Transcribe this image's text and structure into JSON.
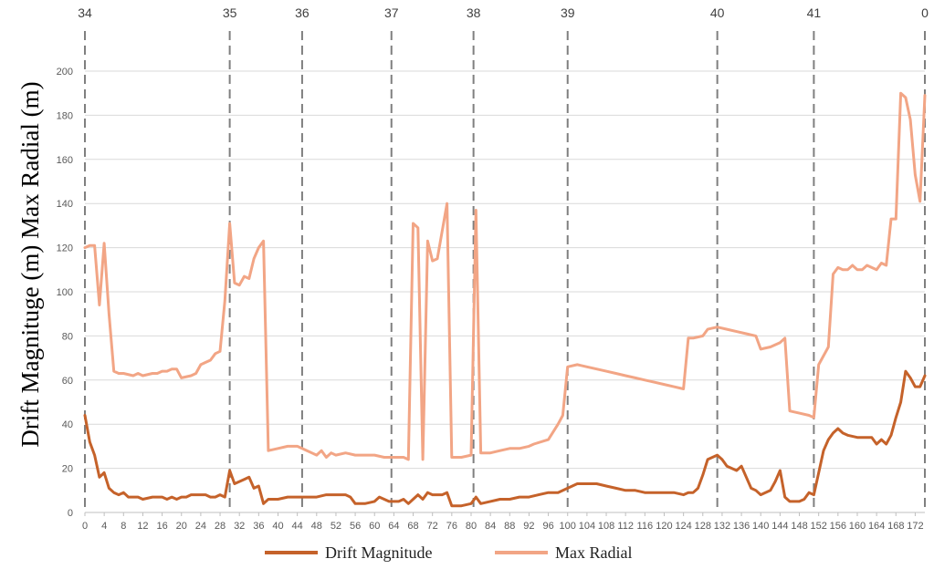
{
  "chart_data": {
    "type": "line",
    "ylabel": "Drift Magnituge (m) Max Radial (m)",
    "xlabel": "",
    "xlim": [
      0,
      174
    ],
    "ylim": [
      0,
      200
    ],
    "y_ticks": [
      0,
      20,
      40,
      60,
      80,
      100,
      120,
      140,
      160,
      180,
      200
    ],
    "x_ticks": [
      0,
      4,
      8,
      12,
      16,
      20,
      24,
      28,
      32,
      36,
      40,
      44,
      48,
      52,
      56,
      60,
      64,
      68,
      72,
      76,
      80,
      84,
      88,
      92,
      96,
      100,
      104,
      108,
      112,
      116,
      120,
      124,
      128,
      132,
      136,
      140,
      144,
      148,
      152,
      156,
      160,
      164,
      168,
      172
    ],
    "grid": "horizontal",
    "legend": "bottom",
    "vertical_markers": [
      {
        "x": 0,
        "label": "34"
      },
      {
        "x": 30,
        "label": "35"
      },
      {
        "x": 45,
        "label": "36"
      },
      {
        "x": 63.5,
        "label": "37"
      },
      {
        "x": 80.5,
        "label": "38"
      },
      {
        "x": 100,
        "label": "39"
      },
      {
        "x": 131,
        "label": "40"
      },
      {
        "x": 151,
        "label": "41"
      },
      {
        "x": 174,
        "label": "0"
      }
    ],
    "series": [
      {
        "name": "Drift Magnitude",
        "color": "#C5622A",
        "points": [
          [
            0,
            44
          ],
          [
            1,
            32
          ],
          [
            2,
            26
          ],
          [
            3,
            16
          ],
          [
            4,
            18
          ],
          [
            5,
            11
          ],
          [
            6,
            9
          ],
          [
            7,
            8
          ],
          [
            8,
            9
          ],
          [
            9,
            7
          ],
          [
            10,
            7
          ],
          [
            11,
            7
          ],
          [
            12,
            6
          ],
          [
            14,
            7
          ],
          [
            15,
            7
          ],
          [
            16,
            7
          ],
          [
            17,
            6
          ],
          [
            18,
            7
          ],
          [
            19,
            6
          ],
          [
            20,
            7
          ],
          [
            21,
            7
          ],
          [
            22,
            8
          ],
          [
            24,
            8
          ],
          [
            25,
            8
          ],
          [
            26,
            7
          ],
          [
            27,
            7
          ],
          [
            28,
            8
          ],
          [
            29,
            7
          ],
          [
            30,
            19
          ],
          [
            31,
            13
          ],
          [
            32,
            14
          ],
          [
            33,
            15
          ],
          [
            34,
            16
          ],
          [
            35,
            11
          ],
          [
            36,
            12
          ],
          [
            37,
            4
          ],
          [
            38,
            6
          ],
          [
            40,
            6
          ],
          [
            42,
            7
          ],
          [
            44,
            7
          ],
          [
            46,
            7
          ],
          [
            48,
            7
          ],
          [
            50,
            8
          ],
          [
            52,
            8
          ],
          [
            54,
            8
          ],
          [
            55,
            7
          ],
          [
            56,
            4
          ],
          [
            58,
            4
          ],
          [
            60,
            5
          ],
          [
            61,
            7
          ],
          [
            63,
            5
          ],
          [
            64,
            5
          ],
          [
            65,
            5
          ],
          [
            66,
            6
          ],
          [
            67,
            4
          ],
          [
            68,
            6
          ],
          [
            69,
            8
          ],
          [
            70,
            6
          ],
          [
            71,
            9
          ],
          [
            72,
            8
          ],
          [
            74,
            8
          ],
          [
            75,
            9
          ],
          [
            76,
            3
          ],
          [
            78,
            3
          ],
          [
            80,
            4
          ],
          [
            81,
            7
          ],
          [
            82,
            4
          ],
          [
            84,
            5
          ],
          [
            86,
            6
          ],
          [
            88,
            6
          ],
          [
            90,
            7
          ],
          [
            92,
            7
          ],
          [
            94,
            8
          ],
          [
            96,
            9
          ],
          [
            98,
            9
          ],
          [
            100,
            11
          ],
          [
            102,
            13
          ],
          [
            104,
            13
          ],
          [
            106,
            13
          ],
          [
            108,
            12
          ],
          [
            110,
            11
          ],
          [
            112,
            10
          ],
          [
            114,
            10
          ],
          [
            116,
            9
          ],
          [
            118,
            9
          ],
          [
            120,
            9
          ],
          [
            122,
            9
          ],
          [
            124,
            8
          ],
          [
            125,
            9
          ],
          [
            126,
            9
          ],
          [
            127,
            11
          ],
          [
            128,
            17
          ],
          [
            129,
            24
          ],
          [
            131,
            26
          ],
          [
            132,
            24
          ],
          [
            133,
            21
          ],
          [
            134,
            20
          ],
          [
            135,
            19
          ],
          [
            136,
            21
          ],
          [
            137,
            16
          ],
          [
            138,
            11
          ],
          [
            139,
            10
          ],
          [
            140,
            8
          ],
          [
            142,
            10
          ],
          [
            143,
            14
          ],
          [
            144,
            19
          ],
          [
            145,
            7
          ],
          [
            146,
            5
          ],
          [
            148,
            5
          ],
          [
            149,
            6
          ],
          [
            150,
            9
          ],
          [
            151,
            8
          ],
          [
            152,
            18
          ],
          [
            153,
            28
          ],
          [
            154,
            33
          ],
          [
            155,
            36
          ],
          [
            156,
            38
          ],
          [
            157,
            36
          ],
          [
            158,
            35
          ],
          [
            160,
            34
          ],
          [
            162,
            34
          ],
          [
            163,
            34
          ],
          [
            164,
            31
          ],
          [
            165,
            33
          ],
          [
            166,
            31
          ],
          [
            167,
            35
          ],
          [
            168,
            43
          ],
          [
            169,
            50
          ],
          [
            170,
            64
          ],
          [
            171,
            61
          ],
          [
            172,
            57
          ],
          [
            173,
            57
          ],
          [
            174,
            62
          ]
        ]
      },
      {
        "name": "Max Radial",
        "color": "#F2A585",
        "points": [
          [
            0,
            120
          ],
          [
            1,
            121
          ],
          [
            2,
            121
          ],
          [
            3,
            94
          ],
          [
            4,
            122
          ],
          [
            5,
            90
          ],
          [
            6,
            64
          ],
          [
            7,
            63
          ],
          [
            8,
            63
          ],
          [
            10,
            62
          ],
          [
            11,
            63
          ],
          [
            12,
            62
          ],
          [
            14,
            63
          ],
          [
            15,
            63
          ],
          [
            16,
            64
          ],
          [
            17,
            64
          ],
          [
            18,
            65
          ],
          [
            19,
            65
          ],
          [
            20,
            61
          ],
          [
            22,
            62
          ],
          [
            23,
            63
          ],
          [
            24,
            67
          ],
          [
            25,
            68
          ],
          [
            26,
            69
          ],
          [
            27,
            72
          ],
          [
            28,
            73
          ],
          [
            29,
            96
          ],
          [
            30,
            131
          ],
          [
            31,
            104
          ],
          [
            32,
            103
          ],
          [
            33,
            107
          ],
          [
            34,
            106
          ],
          [
            35,
            115
          ],
          [
            36,
            120
          ],
          [
            37,
            123
          ],
          [
            38,
            28
          ],
          [
            40,
            29
          ],
          [
            42,
            30
          ],
          [
            44,
            30
          ],
          [
            45,
            29
          ],
          [
            46,
            28
          ],
          [
            47,
            27
          ],
          [
            48,
            26
          ],
          [
            49,
            28
          ],
          [
            50,
            25
          ],
          [
            51,
            27
          ],
          [
            52,
            26
          ],
          [
            54,
            27
          ],
          [
            56,
            26
          ],
          [
            58,
            26
          ],
          [
            60,
            26
          ],
          [
            62,
            25
          ],
          [
            64,
            25
          ],
          [
            66,
            25
          ],
          [
            67,
            24
          ],
          [
            68,
            131
          ],
          [
            69,
            129
          ],
          [
            70,
            24
          ],
          [
            71,
            123
          ],
          [
            72,
            114
          ],
          [
            73,
            115
          ],
          [
            75,
            140
          ],
          [
            76,
            25
          ],
          [
            78,
            25
          ],
          [
            80,
            26
          ],
          [
            81,
            137
          ],
          [
            82,
            27
          ],
          [
            84,
            27
          ],
          [
            86,
            28
          ],
          [
            88,
            29
          ],
          [
            90,
            29
          ],
          [
            92,
            30
          ],
          [
            93,
            31
          ],
          [
            96,
            33
          ],
          [
            98,
            40
          ],
          [
            99,
            44
          ],
          [
            100,
            66
          ],
          [
            102,
            67
          ],
          [
            104,
            66
          ],
          [
            106,
            65
          ],
          [
            108,
            64
          ],
          [
            110,
            63
          ],
          [
            112,
            62
          ],
          [
            114,
            61
          ],
          [
            116,
            60
          ],
          [
            118,
            59
          ],
          [
            120,
            58
          ],
          [
            122,
            57
          ],
          [
            124,
            56
          ],
          [
            125,
            79
          ],
          [
            126,
            79
          ],
          [
            128,
            80
          ],
          [
            129,
            83
          ],
          [
            131,
            84
          ],
          [
            133,
            83
          ],
          [
            135,
            82
          ],
          [
            137,
            81
          ],
          [
            139,
            80
          ],
          [
            140,
            74
          ],
          [
            142,
            75
          ],
          [
            144,
            77
          ],
          [
            145,
            79
          ],
          [
            146,
            46
          ],
          [
            148,
            45
          ],
          [
            150,
            44
          ],
          [
            151,
            43
          ],
          [
            152,
            67
          ],
          [
            154,
            75
          ],
          [
            155,
            108
          ],
          [
            156,
            111
          ],
          [
            157,
            110
          ],
          [
            158,
            110
          ],
          [
            159,
            112
          ],
          [
            160,
            110
          ],
          [
            161,
            110
          ],
          [
            162,
            112
          ],
          [
            163,
            111
          ],
          [
            164,
            110
          ],
          [
            165,
            113
          ],
          [
            166,
            112
          ],
          [
            167,
            133
          ],
          [
            168,
            133
          ],
          [
            169,
            190
          ],
          [
            170,
            188
          ],
          [
            171,
            178
          ],
          [
            172,
            153
          ],
          [
            173,
            141
          ],
          [
            174,
            189
          ]
        ]
      }
    ]
  }
}
